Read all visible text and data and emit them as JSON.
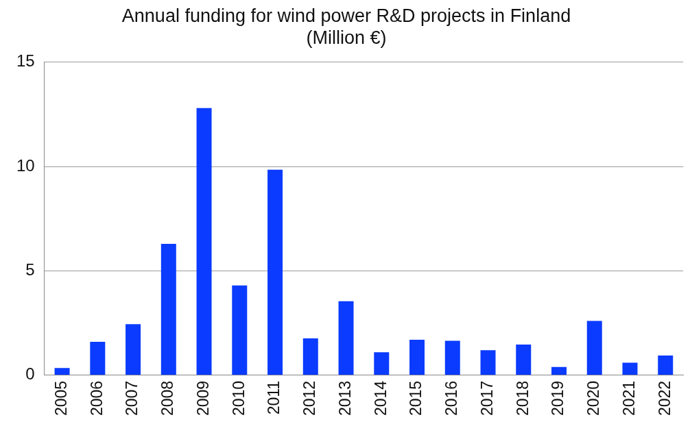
{
  "chart_data": {
    "type": "bar",
    "title": "Annual funding for wind power R&D projects in Finland\n(Million €)",
    "categories": [
      "2005",
      "2006",
      "2007",
      "2008",
      "2009",
      "2010",
      "2011",
      "2012",
      "2013",
      "2014",
      "2015",
      "2016",
      "2017",
      "2018",
      "2019",
      "2020",
      "2021",
      "2022"
    ],
    "values": [
      0.35,
      1.6,
      2.45,
      6.3,
      12.8,
      4.3,
      9.85,
      1.77,
      3.55,
      1.1,
      1.7,
      1.65,
      1.2,
      1.47,
      0.4,
      2.6,
      0.6,
      0.95
    ],
    "color": "#0b3bff",
    "ylim": [
      0,
      15
    ],
    "yticks": [
      0,
      5,
      10,
      15
    ],
    "grid": "y",
    "legend": false
  }
}
